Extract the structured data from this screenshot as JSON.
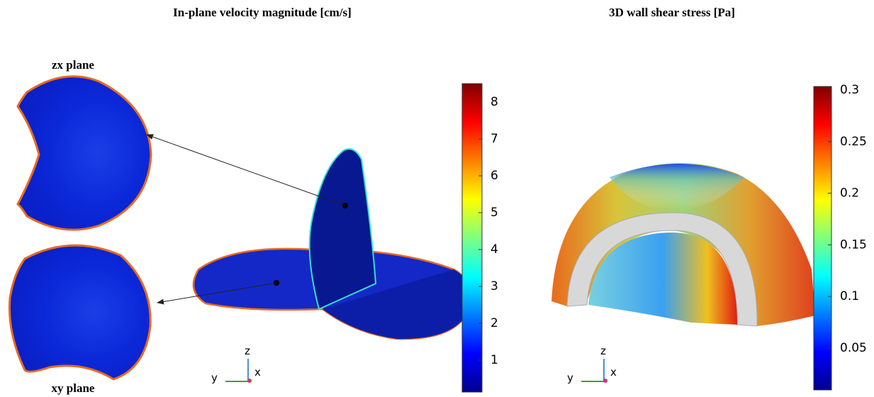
{
  "panels": [
    {
      "title": "In-plane velocity magnitude [cm/s]",
      "plane_labels": [
        "zx plane",
        "xy plane"
      ],
      "axis_labels": [
        "z",
        "y",
        "x"
      ],
      "colorbar": {
        "ticks": [
          1,
          2,
          3,
          4,
          5,
          6,
          7,
          8
        ]
      }
    },
    {
      "title": "3D wall shear stress [Pa]",
      "axis_labels": [
        "z",
        "y",
        "x"
      ],
      "colorbar": {
        "ticks": [
          0.05,
          0.1,
          0.15,
          0.2,
          0.25,
          0.3
        ]
      }
    }
  ]
}
